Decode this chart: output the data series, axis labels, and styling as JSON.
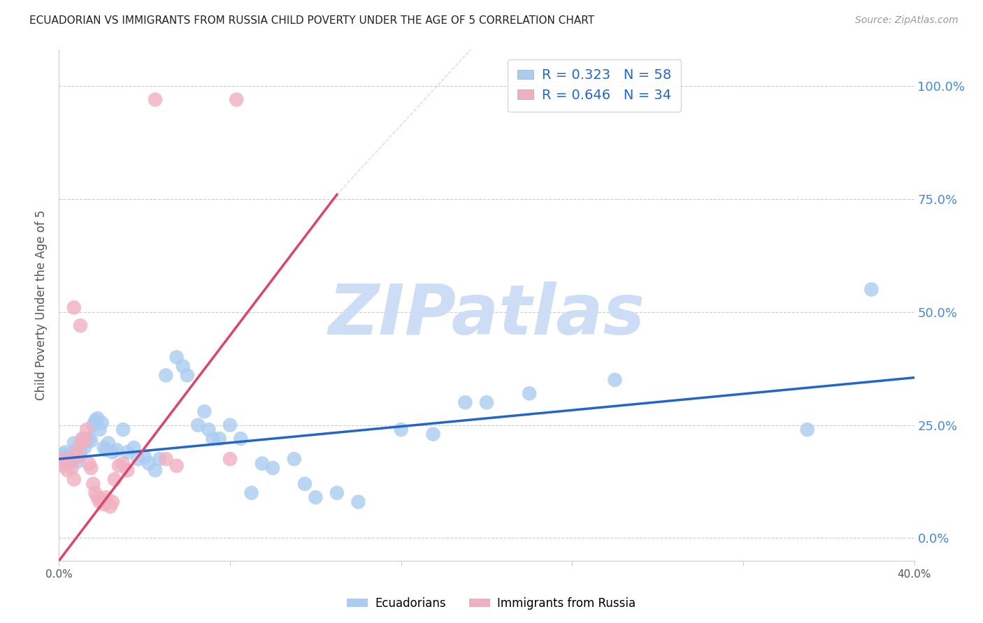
{
  "title": "ECUADORIAN VS IMMIGRANTS FROM RUSSIA CHILD POVERTY UNDER THE AGE OF 5 CORRELATION CHART",
  "source": "Source: ZipAtlas.com",
  "ylabel": "Child Poverty Under the Age of 5",
  "xlim": [
    0.0,
    0.4
  ],
  "ylim": [
    -0.05,
    1.08
  ],
  "ytick_positions": [
    0.0,
    0.25,
    0.5,
    0.75,
    1.0
  ],
  "ytick_labels": [
    "0.0%",
    "25.0%",
    "50.0%",
    "75.0%",
    "100.0%"
  ],
  "xtick_positions": [
    0.0,
    0.08,
    0.16,
    0.24,
    0.32,
    0.4
  ],
  "xtick_labels": [
    "0.0%",
    "",
    "",
    "",
    "",
    "40.0%"
  ],
  "watermark_text": "ZIPatlas",
  "ecu_color": "#aaccf0",
  "rus_color": "#f0b0c0",
  "ecu_line_color": "#2266cc",
  "rus_line_color": "#dd4466",
  "ecu_scatter": [
    [
      0.001,
      0.175
    ],
    [
      0.002,
      0.185
    ],
    [
      0.003,
      0.19
    ],
    [
      0.004,
      0.18
    ],
    [
      0.005,
      0.175
    ],
    [
      0.006,
      0.17
    ],
    [
      0.007,
      0.21
    ],
    [
      0.008,
      0.195
    ],
    [
      0.009,
      0.17
    ],
    [
      0.01,
      0.19
    ],
    [
      0.011,
      0.22
    ],
    [
      0.012,
      0.2
    ],
    [
      0.013,
      0.215
    ],
    [
      0.014,
      0.22
    ],
    [
      0.015,
      0.215
    ],
    [
      0.016,
      0.25
    ],
    [
      0.017,
      0.26
    ],
    [
      0.018,
      0.265
    ],
    [
      0.019,
      0.24
    ],
    [
      0.02,
      0.255
    ],
    [
      0.021,
      0.2
    ],
    [
      0.022,
      0.195
    ],
    [
      0.023,
      0.21
    ],
    [
      0.025,
      0.19
    ],
    [
      0.027,
      0.195
    ],
    [
      0.03,
      0.24
    ],
    [
      0.032,
      0.19
    ],
    [
      0.035,
      0.2
    ],
    [
      0.037,
      0.175
    ],
    [
      0.04,
      0.18
    ],
    [
      0.042,
      0.165
    ],
    [
      0.045,
      0.15
    ],
    [
      0.047,
      0.175
    ],
    [
      0.05,
      0.36
    ],
    [
      0.055,
      0.4
    ],
    [
      0.058,
      0.38
    ],
    [
      0.06,
      0.36
    ],
    [
      0.065,
      0.25
    ],
    [
      0.068,
      0.28
    ],
    [
      0.07,
      0.24
    ],
    [
      0.072,
      0.22
    ],
    [
      0.075,
      0.22
    ],
    [
      0.08,
      0.25
    ],
    [
      0.085,
      0.22
    ],
    [
      0.09,
      0.1
    ],
    [
      0.095,
      0.165
    ],
    [
      0.1,
      0.155
    ],
    [
      0.11,
      0.175
    ],
    [
      0.115,
      0.12
    ],
    [
      0.12,
      0.09
    ],
    [
      0.13,
      0.1
    ],
    [
      0.14,
      0.08
    ],
    [
      0.16,
      0.24
    ],
    [
      0.175,
      0.23
    ],
    [
      0.19,
      0.3
    ],
    [
      0.2,
      0.3
    ],
    [
      0.22,
      0.32
    ],
    [
      0.26,
      0.35
    ],
    [
      0.35,
      0.24
    ],
    [
      0.38,
      0.55
    ]
  ],
  "rus_scatter": [
    [
      0.001,
      0.17
    ],
    [
      0.002,
      0.16
    ],
    [
      0.003,
      0.175
    ],
    [
      0.004,
      0.15
    ],
    [
      0.005,
      0.17
    ],
    [
      0.006,
      0.155
    ],
    [
      0.007,
      0.13
    ],
    [
      0.008,
      0.19
    ],
    [
      0.009,
      0.18
    ],
    [
      0.01,
      0.21
    ],
    [
      0.011,
      0.22
    ],
    [
      0.012,
      0.215
    ],
    [
      0.013,
      0.24
    ],
    [
      0.014,
      0.165
    ],
    [
      0.015,
      0.155
    ],
    [
      0.016,
      0.12
    ],
    [
      0.017,
      0.1
    ],
    [
      0.018,
      0.09
    ],
    [
      0.019,
      0.08
    ],
    [
      0.02,
      0.085
    ],
    [
      0.021,
      0.075
    ],
    [
      0.022,
      0.09
    ],
    [
      0.024,
      0.07
    ],
    [
      0.025,
      0.08
    ],
    [
      0.026,
      0.13
    ],
    [
      0.028,
      0.16
    ],
    [
      0.03,
      0.165
    ],
    [
      0.032,
      0.15
    ],
    [
      0.05,
      0.175
    ],
    [
      0.055,
      0.16
    ],
    [
      0.08,
      0.175
    ],
    [
      0.007,
      0.51
    ],
    [
      0.01,
      0.47
    ],
    [
      0.045,
      0.97
    ],
    [
      0.083,
      0.97
    ]
  ],
  "ecu_trend": [
    0.0,
    0.4,
    0.175,
    0.355
  ],
  "rus_trend_solid": [
    0.0,
    0.13,
    -0.05,
    0.76
  ],
  "rus_trend_dash": [
    0.13,
    0.45,
    0.76,
    2.4
  ],
  "grid_color": "#cccccc",
  "bg_color": "#ffffff",
  "title_color": "#222222",
  "label_color": "#555555",
  "tick_label_color": "#555555",
  "right_axis_color": "#4488dd",
  "watermark_color": "#ccddf5",
  "legend_box_color": "#cccccc",
  "R_ecu": "0.323",
  "N_ecu": "58",
  "R_rus": "0.646",
  "N_rus": "34",
  "legend_text_color": "#2266cc"
}
